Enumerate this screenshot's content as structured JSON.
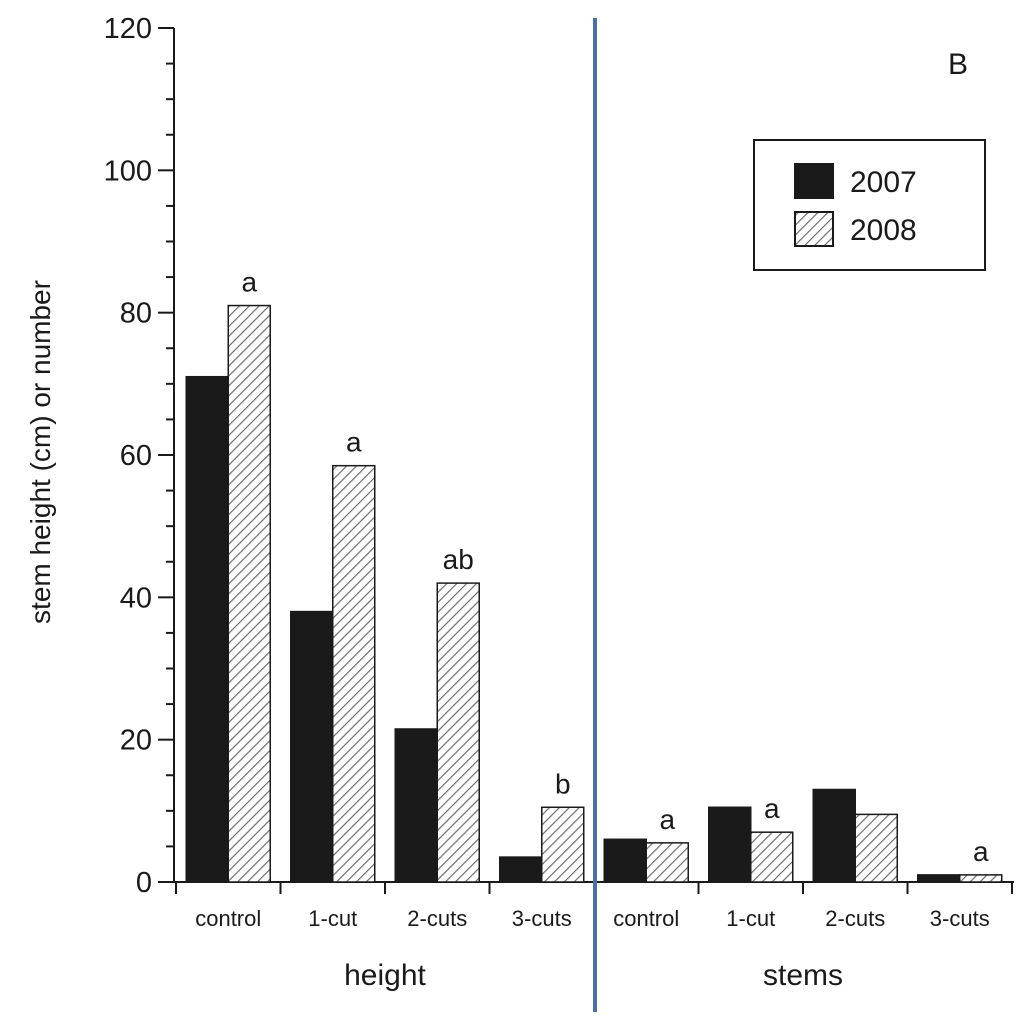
{
  "chart_data": {
    "type": "bar",
    "panel_label": "B",
    "ylabel": "stem height (cm) or number",
    "ylim": [
      0,
      120
    ],
    "yticks": [
      0,
      20,
      40,
      60,
      80,
      100,
      120
    ],
    "groups": [
      {
        "label": "height",
        "categories": [
          "control",
          "1-cut",
          "2-cuts",
          "3-cuts"
        ],
        "series": [
          {
            "name": "2007",
            "values": [
              71,
              38,
              21.5,
              3.5
            ]
          },
          {
            "name": "2008",
            "values": [
              81,
              58.5,
              42,
              10.5
            ]
          }
        ],
        "annotations": [
          "a",
          "a",
          "ab",
          "b"
        ]
      },
      {
        "label": "stems",
        "categories": [
          "control",
          "1-cut",
          "2-cuts",
          "3-cuts"
        ],
        "series": [
          {
            "name": "2007",
            "values": [
              6,
              10.5,
              13,
              1
            ]
          },
          {
            "name": "2008",
            "values": [
              5.5,
              7,
              9.5,
              1
            ]
          }
        ],
        "annotations": [
          "a",
          "a",
          "",
          "a"
        ]
      }
    ],
    "legend": {
      "position": "top-right",
      "entries": [
        {
          "name": "2007",
          "style": "solid",
          "color": "#1a1a1a"
        },
        {
          "name": "2008",
          "style": "hatched",
          "color": "#6e6e6e"
        }
      ]
    },
    "divider_color": "#4a6ea8",
    "grid": false
  }
}
